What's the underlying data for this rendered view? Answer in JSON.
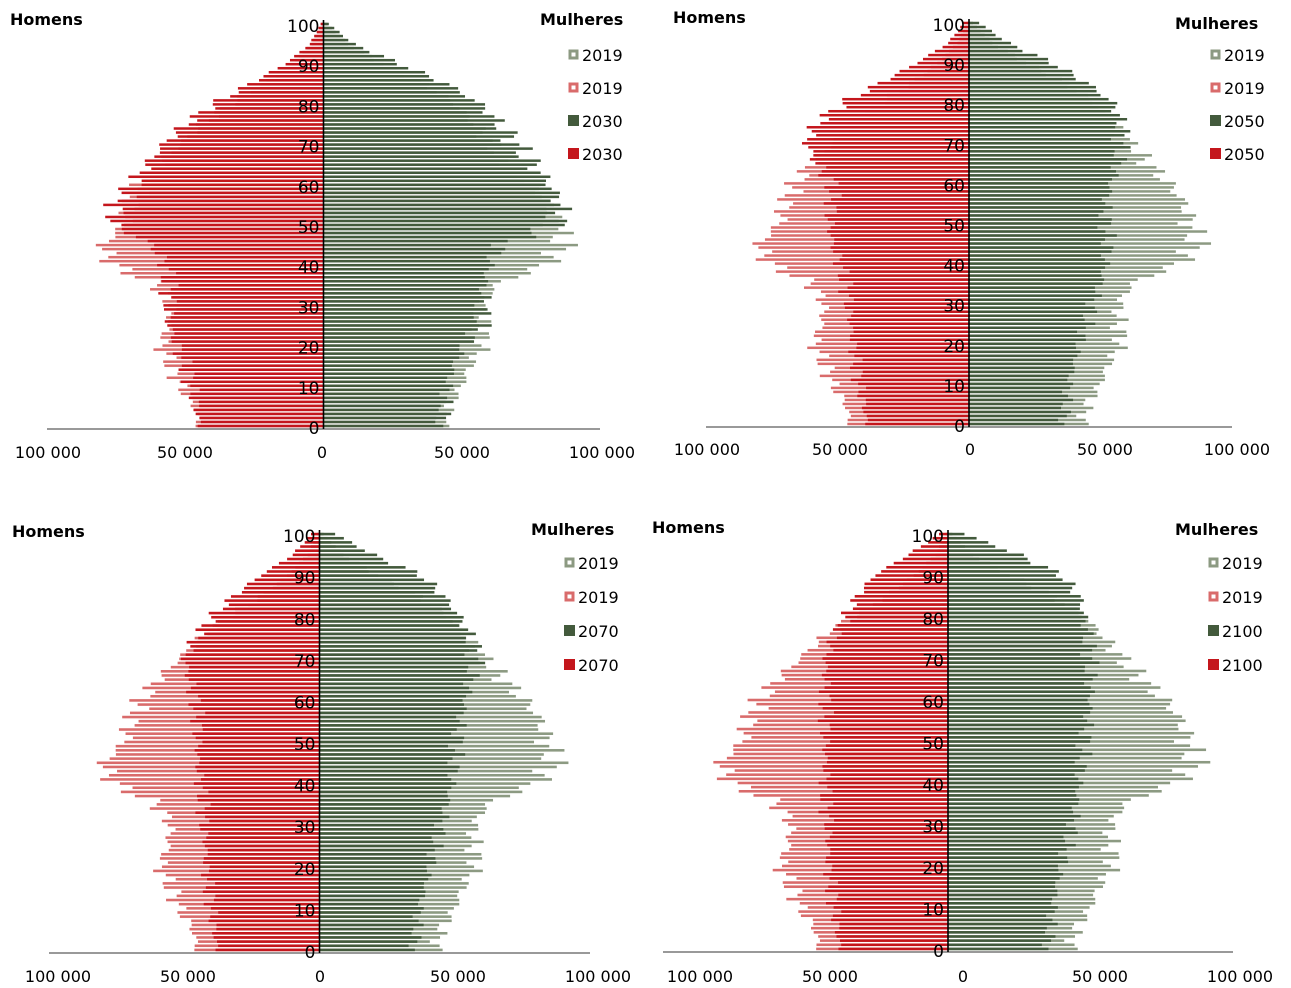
{
  "chart_data": [
    {
      "type": "bar",
      "orientation": "horizontal",
      "subtype": "population-pyramid",
      "left_label": "Homens",
      "right_label": "Mulheres",
      "y_ticks": [
        "0",
        "10",
        "20",
        "30",
        "40",
        "50",
        "60",
        "70",
        "80",
        "90",
        "100"
      ],
      "x_ticks": [
        "100 000",
        "50 000",
        "0",
        "50 000",
        "100 000"
      ],
      "xlim": [
        -100000,
        100000
      ],
      "ylim": [
        0,
        100
      ],
      "legend": [
        {
          "label": "2019",
          "series": "f_base"
        },
        {
          "label": "2019",
          "series": "m_base"
        },
        {
          "label": "2030",
          "series": "f_proj"
        },
        {
          "label": "2030",
          "series": "m_proj"
        }
      ],
      "legend_position": "right",
      "series": [
        {
          "key": "f_base",
          "name": "2019",
          "color": "#8c9a82"
        },
        {
          "key": "m_base",
          "name": "2019",
          "color": "#d96b6b"
        },
        {
          "key": "f_proj",
          "name": "2030",
          "color": "#435a3c"
        },
        {
          "key": "m_proj",
          "name": "2030",
          "color": "#c4161c"
        }
      ],
      "profile_points": {
        "ages": [
          0,
          5,
          10,
          15,
          20,
          25,
          30,
          35,
          40,
          45,
          50,
          55,
          60,
          65,
          70,
          75,
          80,
          85,
          90,
          95,
          100
        ],
        "m_base": [
          45000,
          47000,
          52000,
          55000,
          59000,
          56000,
          55000,
          60000,
          76000,
          80000,
          72000,
          70000,
          66000,
          60000,
          52000,
          44000,
          34000,
          22000,
          12000,
          4500,
          800
        ],
        "f_base": [
          43000,
          45000,
          50000,
          53000,
          58000,
          57000,
          57000,
          62000,
          80000,
          87000,
          84000,
          82000,
          76000,
          68000,
          61000,
          55000,
          48000,
          37000,
          22000,
          9000,
          1500
        ],
        "m_proj": [
          45000,
          46000,
          48000,
          50000,
          53000,
          56000,
          56000,
          56000,
          57000,
          62000,
          76000,
          75000,
          69000,
          64000,
          58000,
          50000,
          40000,
          27000,
          14000,
          5000,
          1000
        ],
        "f_proj": [
          43000,
          44000,
          45000,
          47000,
          51000,
          57000,
          58000,
          58000,
          60000,
          64000,
          84000,
          86000,
          82000,
          76000,
          70000,
          64000,
          57000,
          45000,
          28000,
          11000,
          2000
        ]
      }
    },
    {
      "type": "bar",
      "orientation": "horizontal",
      "subtype": "population-pyramid",
      "left_label": "Homens",
      "right_label": "Mulheres",
      "y_ticks": [
        "0",
        "10",
        "20",
        "30",
        "40",
        "50",
        "60",
        "70",
        "80",
        "90",
        "100"
      ],
      "x_ticks": [
        "100 000",
        "50 000",
        "0",
        "50 000",
        "100 000"
      ],
      "xlim": [
        -100000,
        100000
      ],
      "ylim": [
        0,
        100
      ],
      "legend": [
        {
          "label": "2019",
          "series": "f_base"
        },
        {
          "label": "2019",
          "series": "m_base"
        },
        {
          "label": "2050",
          "series": "f_proj"
        },
        {
          "label": "2050",
          "series": "m_proj"
        }
      ],
      "legend_position": "right",
      "series": [
        {
          "key": "f_base",
          "name": "2019",
          "color": "#8c9a82"
        },
        {
          "key": "m_base",
          "name": "2019",
          "color": "#d96b6b"
        },
        {
          "key": "f_proj",
          "name": "2050",
          "color": "#435a3c"
        },
        {
          "key": "m_proj",
          "name": "2050",
          "color": "#c4161c"
        }
      ],
      "profile_points": {
        "ages": [
          0,
          5,
          10,
          15,
          20,
          25,
          30,
          35,
          40,
          45,
          50,
          55,
          60,
          65,
          70,
          75,
          80,
          85,
          90,
          95,
          100
        ],
        "m_base": [
          45000,
          47000,
          52000,
          55000,
          59000,
          56000,
          55000,
          60000,
          76000,
          80000,
          72000,
          70000,
          66000,
          60000,
          52000,
          44000,
          34000,
          22000,
          12000,
          4500,
          800
        ],
        "f_base": [
          43000,
          45000,
          50000,
          53000,
          58000,
          57000,
          57000,
          62000,
          80000,
          87000,
          84000,
          82000,
          76000,
          68000,
          61000,
          55000,
          48000,
          37000,
          22000,
          9000,
          1500
        ],
        "m_proj": [
          39000,
          40000,
          42000,
          43000,
          44000,
          45000,
          46000,
          47000,
          49000,
          52000,
          53000,
          52000,
          52000,
          58000,
          62000,
          58000,
          48000,
          34000,
          20000,
          8000,
          2000
        ],
        "f_proj": [
          36000,
          37000,
          38000,
          40000,
          42000,
          45000,
          47000,
          50000,
          52000,
          53000,
          52000,
          52000,
          54000,
          57000,
          58000,
          58000,
          55000,
          45000,
          32000,
          15000,
          4000
        ]
      }
    },
    {
      "type": "bar",
      "orientation": "horizontal",
      "subtype": "population-pyramid",
      "left_label": "Homens",
      "right_label": "Mulheres",
      "y_ticks": [
        "0",
        "10",
        "20",
        "30",
        "40",
        "50",
        "60",
        "70",
        "80",
        "90",
        "100"
      ],
      "x_ticks": [
        "100 000",
        "50 000",
        "0",
        "50 000",
        "100 000"
      ],
      "xlim": [
        -100000,
        100000
      ],
      "ylim": [
        0,
        100
      ],
      "legend": [
        {
          "label": "2019",
          "series": "f_base"
        },
        {
          "label": "2019",
          "series": "m_base"
        },
        {
          "label": "2070",
          "series": "f_proj"
        },
        {
          "label": "2070",
          "series": "m_proj"
        }
      ],
      "legend_position": "right",
      "series": [
        {
          "key": "f_base",
          "name": "2019",
          "color": "#8c9a82"
        },
        {
          "key": "m_base",
          "name": "2019",
          "color": "#d96b6b"
        },
        {
          "key": "f_proj",
          "name": "2070",
          "color": "#435a3c"
        },
        {
          "key": "m_proj",
          "name": "2070",
          "color": "#c4161c"
        }
      ],
      "profile_points": {
        "ages": [
          0,
          5,
          10,
          15,
          20,
          25,
          30,
          35,
          40,
          45,
          50,
          55,
          60,
          65,
          70,
          75,
          80,
          85,
          90,
          95,
          100
        ],
        "m_base": [
          45000,
          47000,
          52000,
          55000,
          59000,
          56000,
          55000,
          60000,
          76000,
          80000,
          72000,
          70000,
          66000,
          60000,
          52000,
          44000,
          34000,
          22000,
          12000,
          4500,
          800
        ],
        "f_base": [
          43000,
          45000,
          50000,
          53000,
          58000,
          57000,
          57000,
          62000,
          80000,
          87000,
          84000,
          82000,
          76000,
          68000,
          61000,
          55000,
          48000,
          37000,
          22000,
          9000,
          1500
        ],
        "m_proj": [
          38000,
          39000,
          40000,
          41000,
          42000,
          42000,
          43000,
          43000,
          44000,
          45000,
          45000,
          45000,
          46000,
          48000,
          50000,
          46000,
          40000,
          32000,
          22000,
          10000,
          3000
        ],
        "f_proj": [
          35000,
          36000,
          37000,
          39000,
          41000,
          43000,
          45000,
          47000,
          49000,
          50000,
          51000,
          52000,
          54000,
          56000,
          58000,
          56000,
          52000,
          46000,
          38000,
          20000,
          6000
        ]
      }
    },
    {
      "type": "bar",
      "orientation": "horizontal",
      "subtype": "population-pyramid",
      "left_label": "Homens",
      "right_label": "Mulheres",
      "y_ticks": [
        "0",
        "10",
        "20",
        "30",
        "40",
        "50",
        "60",
        "70",
        "80",
        "90",
        "100"
      ],
      "x_ticks": [
        "100 000",
        "50 000",
        "0",
        "50 000",
        "100 000"
      ],
      "xlim": [
        -100000,
        100000
      ],
      "ylim": [
        0,
        100
      ],
      "legend": [
        {
          "label": "2019",
          "series": "f_base"
        },
        {
          "label": "2019",
          "series": "m_base"
        },
        {
          "label": "2100",
          "series": "f_proj"
        },
        {
          "label": "2100",
          "series": "m_proj"
        }
      ],
      "legend_position": "right",
      "series": [
        {
          "key": "f_base",
          "name": "2019",
          "color": "#8c9a82"
        },
        {
          "key": "m_base",
          "name": "2019",
          "color": "#d96b6b"
        },
        {
          "key": "f_proj",
          "name": "2100",
          "color": "#435a3c"
        },
        {
          "key": "m_proj",
          "name": "2100",
          "color": "#c4161c"
        }
      ],
      "profile_points": {
        "ages": [
          0,
          5,
          10,
          15,
          20,
          25,
          30,
          35,
          40,
          45,
          50,
          55,
          60,
          65,
          70,
          75,
          80,
          85,
          90,
          95,
          100
        ],
        "m_base": [
          45000,
          47000,
          52000,
          55000,
          59000,
          56000,
          55000,
          60000,
          76000,
          80000,
          72000,
          70000,
          66000,
          60000,
          52000,
          44000,
          34000,
          22000,
          12000,
          4500,
          800
        ],
        "f_base": [
          43000,
          45000,
          50000,
          53000,
          58000,
          57000,
          57000,
          62000,
          80000,
          87000,
          84000,
          82000,
          76000,
          68000,
          61000,
          55000,
          48000,
          37000,
          22000,
          9000,
          1500
        ],
        "m_proj": [
          38000,
          39000,
          40000,
          41000,
          42000,
          42000,
          42000,
          43000,
          43000,
          43000,
          43000,
          43000,
          43000,
          43000,
          43000,
          40000,
          36000,
          32000,
          26000,
          14000,
          3000
        ],
        "f_proj": [
          35000,
          36000,
          37000,
          38000,
          40000,
          42000,
          44000,
          45000,
          46000,
          47000,
          48000,
          49000,
          50000,
          50000,
          50000,
          49000,
          48000,
          46000,
          40000,
          25000,
          6000
        ]
      }
    }
  ]
}
